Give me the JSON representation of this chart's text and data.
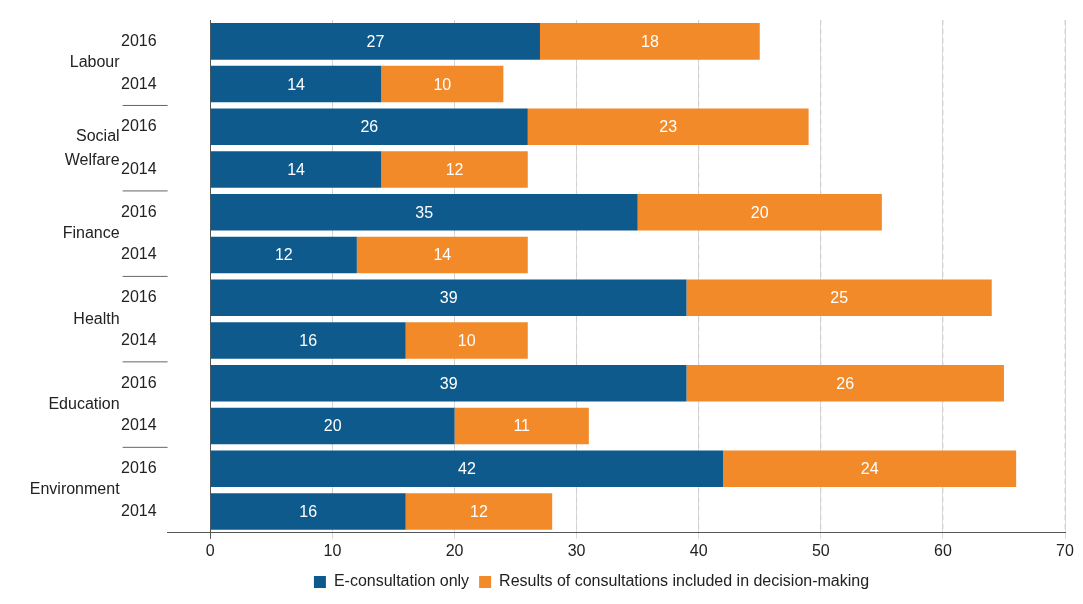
{
  "chart_data": {
    "type": "bar",
    "orientation": "horizontal",
    "stacked": true,
    "categories": [
      "2016",
      "2014",
      "2016",
      "2014",
      "2016",
      "2014",
      "2016",
      "2014",
      "2016",
      "2014",
      "2016",
      "2014"
    ],
    "annotations": [
      "Labour",
      "Social Welfare",
      "Finance",
      "Health",
      "Education",
      "Environment"
    ],
    "series": [
      {
        "name": "E-consultation only",
        "color": "#0f5a8c",
        "values": [
          27,
          14,
          26,
          14,
          35,
          12,
          39,
          16,
          39,
          20,
          42,
          16
        ]
      },
      {
        "name": "Results of consultations included in decision-making",
        "color": "#f28a2a",
        "values": [
          18,
          10,
          23,
          12,
          20,
          14,
          25,
          10,
          26,
          11,
          24,
          12
        ]
      }
    ],
    "xlim": [
      -3.5,
      70
    ],
    "xticks": [
      0,
      10,
      20,
      30,
      40,
      50,
      60,
      70
    ],
    "grid": "x",
    "legend": "bottom",
    "data_labels": true
  }
}
